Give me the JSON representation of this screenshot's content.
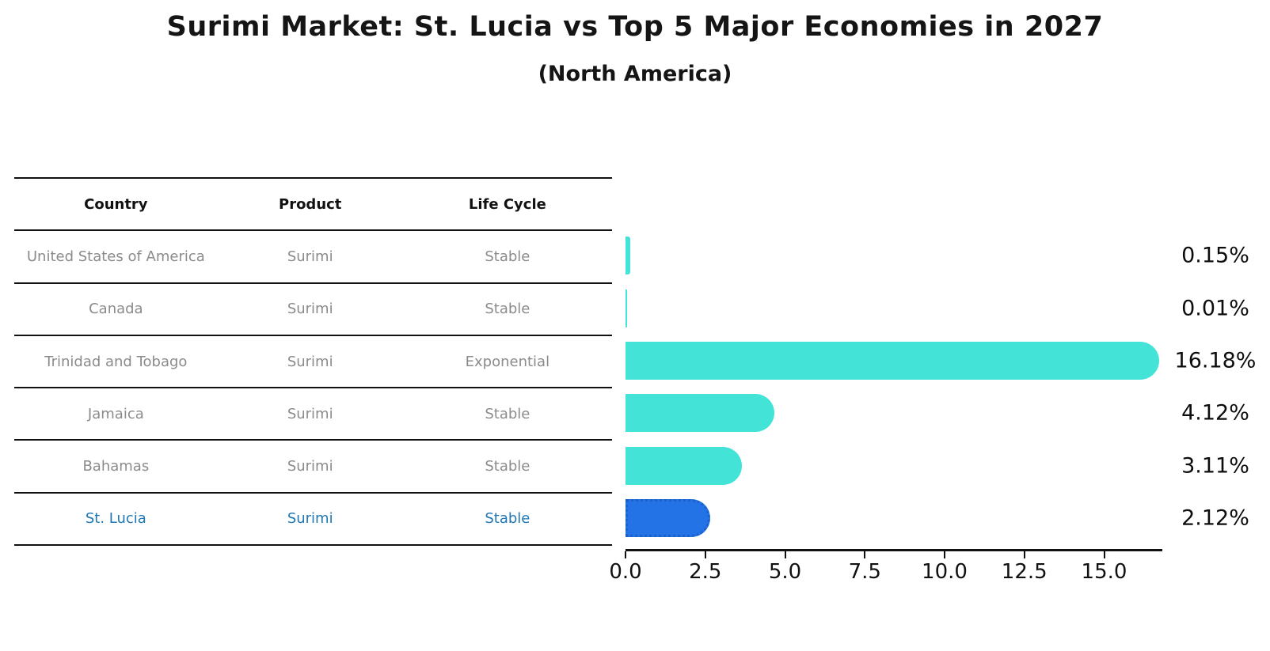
{
  "title": "Surimi Market: St. Lucia vs Top 5 Major Economies in 2027",
  "subtitle": "(North America)",
  "table": {
    "headers": [
      "Country",
      "Product",
      "Life Cycle"
    ],
    "rows": [
      {
        "country": "United States of America",
        "product": "Surimi",
        "life_cycle": "Stable",
        "highlight": false
      },
      {
        "country": "Canada",
        "product": "Surimi",
        "life_cycle": "Stable",
        "highlight": false
      },
      {
        "country": "Trinidad and Tobago",
        "product": "Surimi",
        "life_cycle": "Exponential",
        "highlight": false
      },
      {
        "country": "Jamaica",
        "product": "Surimi",
        "life_cycle": "Stable",
        "highlight": false
      },
      {
        "country": "Bahamas",
        "product": "Surimi",
        "life_cycle": "Stable",
        "highlight": false
      },
      {
        "country": "St. Lucia",
        "product": "Surimi",
        "life_cycle": "Stable",
        "highlight": true
      }
    ]
  },
  "chart_data": {
    "type": "bar",
    "orientation": "horizontal",
    "title": "Surimi Market: St. Lucia vs Top 5 Major Economies in 2027 (North America)",
    "categories": [
      "United States of America",
      "Canada",
      "Trinidad and Tobago",
      "Jamaica",
      "Bahamas",
      "St. Lucia"
    ],
    "values": [
      0.15,
      0.01,
      16.18,
      4.12,
      3.11,
      2.12
    ],
    "value_labels": [
      "0.15%",
      "0.01%",
      "16.18%",
      "4.12%",
      "3.11%",
      "2.12%"
    ],
    "x_ticks": [
      0,
      2.5,
      5,
      7.5,
      10,
      12.5,
      15
    ],
    "x_tick_labels": [
      "0.0",
      "2.5",
      "5.0",
      "7.5",
      "10.0",
      "12.5",
      "15.0"
    ],
    "xlim": [
      0,
      16.8
    ],
    "highlight_index": 5,
    "grid": false,
    "legend": false
  },
  "colors": {
    "bar": "#43E3D8",
    "highlight_bar": "#2373E6",
    "highlight_border": "#1C60CC",
    "highlight_text": "#1F77B4",
    "cell_text": "#8B8B8B",
    "header_text": "#111111",
    "line": "#111111"
  }
}
